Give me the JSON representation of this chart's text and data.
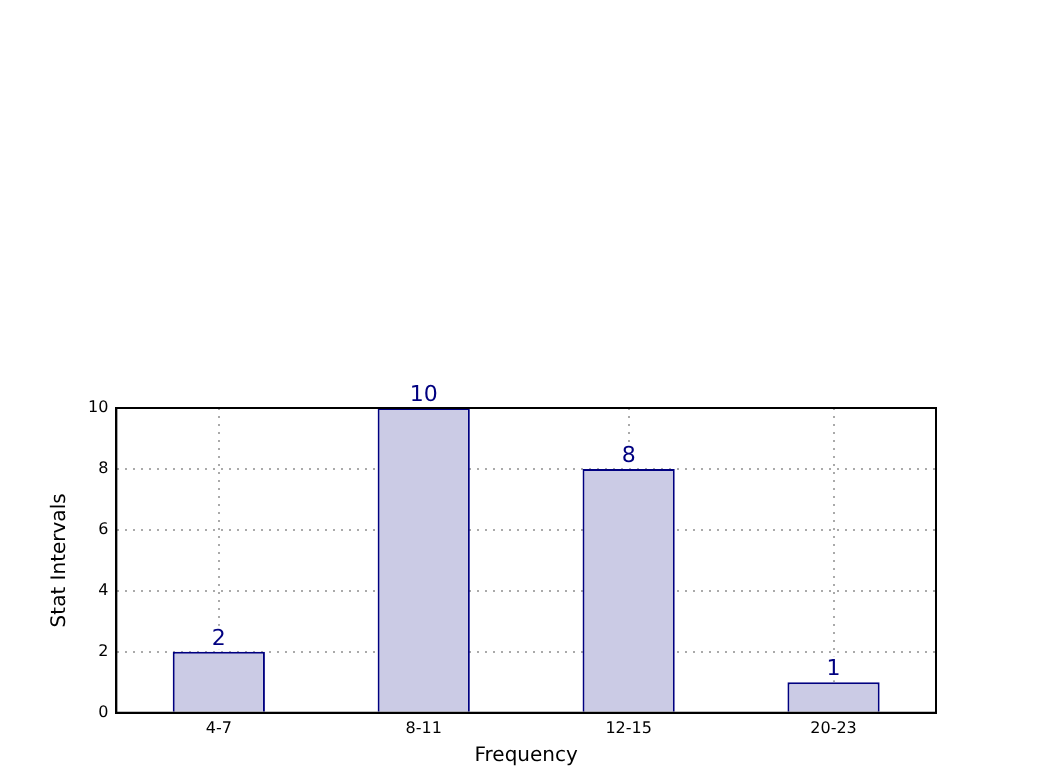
{
  "chart_data": {
    "type": "bar",
    "xlabel": "Frequency",
    "ylabel": "Stat Intervals",
    "categories": [
      "4-7",
      "8-11",
      "12-15",
      "20-23"
    ],
    "values": [
      2,
      10,
      8,
      1
    ],
    "color": "#cbcbe5",
    "ylim": [
      0,
      10
    ],
    "yticks": [
      0,
      2,
      4,
      6,
      8,
      10
    ],
    "grid": true,
    "data_labels": true,
    "legend": false
  }
}
